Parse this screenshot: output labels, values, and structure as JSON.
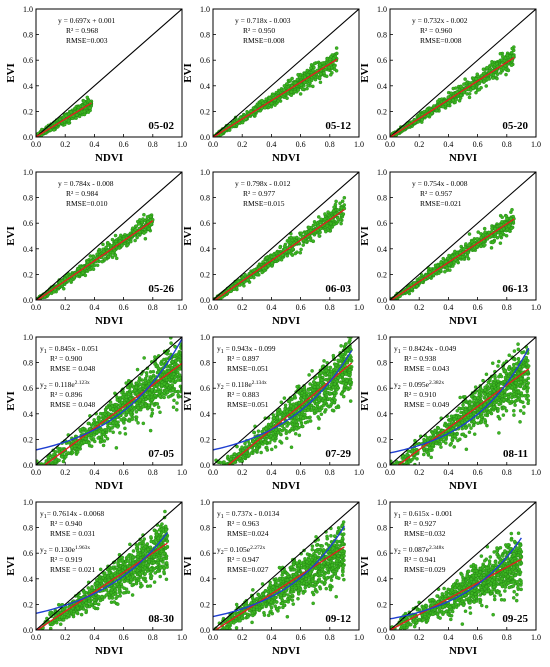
{
  "colors": {
    "points_fill": "#3cb521",
    "points_stroke": "#1f7d13",
    "linear_fit": "#e02020",
    "exp_fit": "#1f3fd1",
    "one_to_one": "#000000"
  },
  "chart_data": [
    {
      "type": "scatter",
      "panel": "05-02",
      "xlabel": "NDVI",
      "ylabel": "EVI",
      "xlim": [
        0,
        1
      ],
      "ylim": [
        0,
        1
      ],
      "xticks": [
        "0.0",
        "0.2",
        "0.4",
        "0.6",
        "0.8",
        "1.0"
      ],
      "yticks": [
        "0.0",
        "0.2",
        "0.4",
        "0.6",
        "0.8",
        "1.0"
      ],
      "xrange": [
        0.0,
        0.38
      ],
      "fits": [
        {
          "kind": "linear",
          "a": 0.697,
          "b": 0.001,
          "x_range": [
            0.0,
            0.38
          ]
        }
      ],
      "annotations": [
        "y = 0.697x + 0.001",
        "R² = 0.968",
        "RMSE=0.003"
      ]
    },
    {
      "type": "scatter",
      "panel": "05-12",
      "xlabel": "NDVI",
      "ylabel": "EVI",
      "xlim": [
        0,
        1
      ],
      "ylim": [
        0,
        1
      ],
      "xticks": [
        "0.0",
        "0.2",
        "0.4",
        "0.6",
        "0.8",
        "1.0"
      ],
      "yticks": [
        "0.0",
        "0.2",
        "0.4",
        "0.6",
        "0.8",
        "1.0"
      ],
      "xrange": [
        0.0,
        0.85
      ],
      "fits": [
        {
          "kind": "linear",
          "a": 0.718,
          "b": -0.003,
          "x_range": [
            0.0,
            0.85
          ]
        }
      ],
      "annotations": [
        "y = 0.718x - 0.003",
        "R² = 0.950",
        "RMSE=0.008"
      ]
    },
    {
      "type": "scatter",
      "panel": "05-20",
      "xlabel": "NDVI",
      "ylabel": "EVI",
      "xlim": [
        0,
        1
      ],
      "ylim": [
        0,
        1
      ],
      "xticks": [
        "0.0",
        "0.2",
        "0.4",
        "0.6",
        "0.8",
        "1.0"
      ],
      "yticks": [
        "0.0",
        "0.2",
        "0.4",
        "0.6",
        "0.8",
        "1.0"
      ],
      "xrange": [
        0.0,
        0.85
      ],
      "fits": [
        {
          "kind": "linear",
          "a": 0.732,
          "b": -0.002,
          "x_range": [
            0.0,
            0.85
          ]
        }
      ],
      "annotations": [
        "y = 0.732x - 0.002",
        "R² = 0.960",
        "RMSE=0.008"
      ]
    },
    {
      "type": "scatter",
      "panel": "05-26",
      "xlabel": "NDVI",
      "ylabel": "EVI",
      "xlim": [
        0,
        1
      ],
      "ylim": [
        0,
        1
      ],
      "xticks": [
        "0.0",
        "0.2",
        "0.4",
        "0.6",
        "0.8",
        "1.0"
      ],
      "yticks": [
        "0.0",
        "0.2",
        "0.4",
        "0.6",
        "0.8",
        "1.0"
      ],
      "xrange": [
        0.0,
        0.8
      ],
      "fits": [
        {
          "kind": "linear",
          "a": 0.784,
          "b": -0.008,
          "x_range": [
            0.0,
            0.8
          ]
        }
      ],
      "annotations": [
        "y = 0.784x - 0.008",
        "R² = 0.984",
        "RMSE=0.010"
      ]
    },
    {
      "type": "scatter",
      "panel": "06-03",
      "xlabel": "NDVI",
      "ylabel": "EVI",
      "xlim": [
        0,
        1
      ],
      "ylim": [
        0,
        1
      ],
      "xticks": [
        "0.0",
        "0.2",
        "0.4",
        "0.6",
        "0.8",
        "1.0"
      ],
      "yticks": [
        "0.0",
        "0.2",
        "0.4",
        "0.6",
        "0.8",
        "1.0"
      ],
      "xrange": [
        0.0,
        0.9
      ],
      "fits": [
        {
          "kind": "linear",
          "a": 0.798,
          "b": -0.012,
          "x_range": [
            0.0,
            0.9
          ]
        }
      ],
      "annotations": [
        "y = 0.798x - 0.012",
        "R² = 0.977",
        "RMSE=0.015"
      ]
    },
    {
      "type": "scatter",
      "panel": "06-13",
      "xlabel": "NDVI",
      "ylabel": "EVI",
      "xlim": [
        0,
        1
      ],
      "ylim": [
        0,
        1
      ],
      "xticks": [
        "0.0",
        "0.2",
        "0.4",
        "0.6",
        "0.8",
        "1.0"
      ],
      "yticks": [
        "0.0",
        "0.2",
        "0.4",
        "0.6",
        "0.8",
        "1.0"
      ],
      "xrange": [
        0.0,
        0.85
      ],
      "fits": [
        {
          "kind": "linear",
          "a": 0.754,
          "b": -0.008,
          "x_range": [
            0.0,
            0.85
          ]
        }
      ],
      "annotations": [
        "y = 0.754x - 0.008",
        "R² = 0.957",
        "RMSE=0.021"
      ]
    },
    {
      "type": "scatter",
      "panel": "07-05",
      "xlabel": "NDVI",
      "ylabel": "EVI",
      "xlim": [
        0,
        1
      ],
      "ylim": [
        0,
        1
      ],
      "xticks": [
        "0.0",
        "0.2",
        "0.4",
        "0.6",
        "0.8",
        "1.0"
      ],
      "yticks": [
        "0.0",
        "0.2",
        "0.4",
        "0.6",
        "0.8",
        "1.0"
      ],
      "xrange": [
        0.0,
        1.0
      ],
      "fits": [
        {
          "kind": "linear",
          "a": 0.845,
          "b": -0.051,
          "x_range": [
            0.0,
            1.0
          ]
        },
        {
          "kind": "exp",
          "a": 0.118,
          "b": 2.123,
          "x_range": [
            0.0,
            1.0
          ]
        }
      ],
      "annotations": [
        "y1 = 0.845x - 0.051",
        "R² = 0.900",
        "RMSE = 0.048",
        "y2 = 0.118e^(2.123x)",
        "R² = 0.896",
        "RMSE = 0.048"
      ]
    },
    {
      "type": "scatter",
      "panel": "07-29",
      "xlabel": "NDVI",
      "ylabel": "EVI",
      "xlim": [
        0,
        1
      ],
      "ylim": [
        0,
        1
      ],
      "xticks": [
        "0.0",
        "0.2",
        "0.4",
        "0.6",
        "0.8",
        "1.0"
      ],
      "yticks": [
        "0.0",
        "0.2",
        "0.4",
        "0.6",
        "0.8",
        "1.0"
      ],
      "xrange": [
        0.0,
        0.95
      ],
      "fits": [
        {
          "kind": "linear",
          "a": 0.943,
          "b": -0.099,
          "x_range": [
            0.0,
            0.95
          ]
        },
        {
          "kind": "exp",
          "a": 0.118,
          "b": 2.134,
          "x_range": [
            0.0,
            0.95
          ]
        }
      ],
      "annotations": [
        "y1 = 0.943x - 0.099",
        "R² = 0.897",
        "RMSE=0.051",
        "y2 = 0.118e^(2.134x)",
        "R² = 0.883",
        "RMSE=0.051"
      ]
    },
    {
      "type": "scatter",
      "panel": "08-11",
      "xlabel": "NDVI",
      "ylabel": "EVI",
      "xlim": [
        0,
        1
      ],
      "ylim": [
        0,
        1
      ],
      "xticks": [
        "0.0",
        "0.2",
        "0.4",
        "0.6",
        "0.8",
        "1.0"
      ],
      "yticks": [
        "0.0",
        "0.2",
        "0.4",
        "0.6",
        "0.8",
        "1.0"
      ],
      "xrange": [
        0.0,
        0.95
      ],
      "fits": [
        {
          "kind": "linear",
          "a": 0.8424,
          "b": -0.049,
          "x_range": [
            0.0,
            0.95
          ]
        },
        {
          "kind": "exp",
          "a": 0.095,
          "b": 2.382,
          "x_range": [
            0.0,
            0.95
          ]
        }
      ],
      "annotations": [
        "y1 = 0.8424x - 0.049",
        "R² = 0.938",
        "RMSE = 0.043",
        "y2 = 0.095e^(2.382x)",
        "R² = 0.910",
        "RMSE = 0.049"
      ]
    },
    {
      "type": "scatter",
      "panel": "08-30",
      "xlabel": "NDVI",
      "ylabel": "EVI",
      "xlim": [
        0,
        1
      ],
      "ylim": [
        0,
        1
      ],
      "xticks": [
        "0.0",
        "0.2",
        "0.4",
        "0.6",
        "0.8",
        "1.0"
      ],
      "yticks": [
        "0.0",
        "0.2",
        "0.4",
        "0.6",
        "0.8",
        "1.0"
      ],
      "xrange": [
        0.0,
        0.9
      ],
      "fits": [
        {
          "kind": "linear",
          "a": 0.7614,
          "b": -0.0068,
          "x_range": [
            0.0,
            0.9
          ]
        },
        {
          "kind": "exp",
          "a": 0.13,
          "b": 1.963,
          "x_range": [
            0.0,
            0.9
          ]
        }
      ],
      "annotations": [
        "y1= 0.7614x - 0.0068",
        "R² = 0.940",
        "RMSE = 0.031",
        "y2 = 0.130e^(1.963x)",
        "R² = 0.919",
        "RMSE = 0.021"
      ]
    },
    {
      "type": "scatter",
      "panel": "09-12",
      "xlabel": "NDVI",
      "ylabel": "EVI",
      "xlim": [
        0,
        1
      ],
      "ylim": [
        0,
        1
      ],
      "xticks": [
        "0.0",
        "0.2",
        "0.4",
        "0.6",
        "0.8",
        "1.0"
      ],
      "yticks": [
        "0.0",
        "0.2",
        "0.4",
        "0.6",
        "0.8",
        "1.0"
      ],
      "xrange": [
        0.0,
        0.9
      ],
      "fits": [
        {
          "kind": "linear",
          "a": 0.737,
          "b": -0.0134,
          "x_range": [
            0.0,
            0.9
          ]
        },
        {
          "kind": "exp",
          "a": 0.105,
          "b": 2.272,
          "x_range": [
            0.0,
            0.9
          ]
        }
      ],
      "annotations": [
        "y1 = 0.737x - 0.0134",
        "R² = 0.963",
        "RMSE=0.024",
        "y2= 0.105e^(2.272x)",
        "R² = 0.947",
        "RMSE=0.027"
      ]
    },
    {
      "type": "scatter",
      "panel": "09-25",
      "xlabel": "NDVI",
      "ylabel": "EVI",
      "xlim": [
        0,
        1
      ],
      "ylim": [
        0,
        1
      ],
      "xticks": [
        "0.0",
        "0.2",
        "0.4",
        "0.6",
        "0.8",
        "1.0"
      ],
      "yticks": [
        "0.0",
        "0.2",
        "0.4",
        "0.6",
        "0.8",
        "1.0"
      ],
      "xrange": [
        0.0,
        0.9
      ],
      "fits": [
        {
          "kind": "linear",
          "a": 0.615,
          "b": -0.001,
          "x_range": [
            0.0,
            0.9
          ]
        },
        {
          "kind": "exp",
          "a": 0.087,
          "b": 2.348,
          "x_range": [
            0.0,
            0.9
          ]
        }
      ],
      "annotations": [
        "y1 = 0.615x - 0.001",
        "R² = 0.927",
        "RMSE=0.032",
        "y2 = 0.087e^(2.348x)",
        "R² = 0.941",
        "RMSE=0.029"
      ]
    }
  ]
}
